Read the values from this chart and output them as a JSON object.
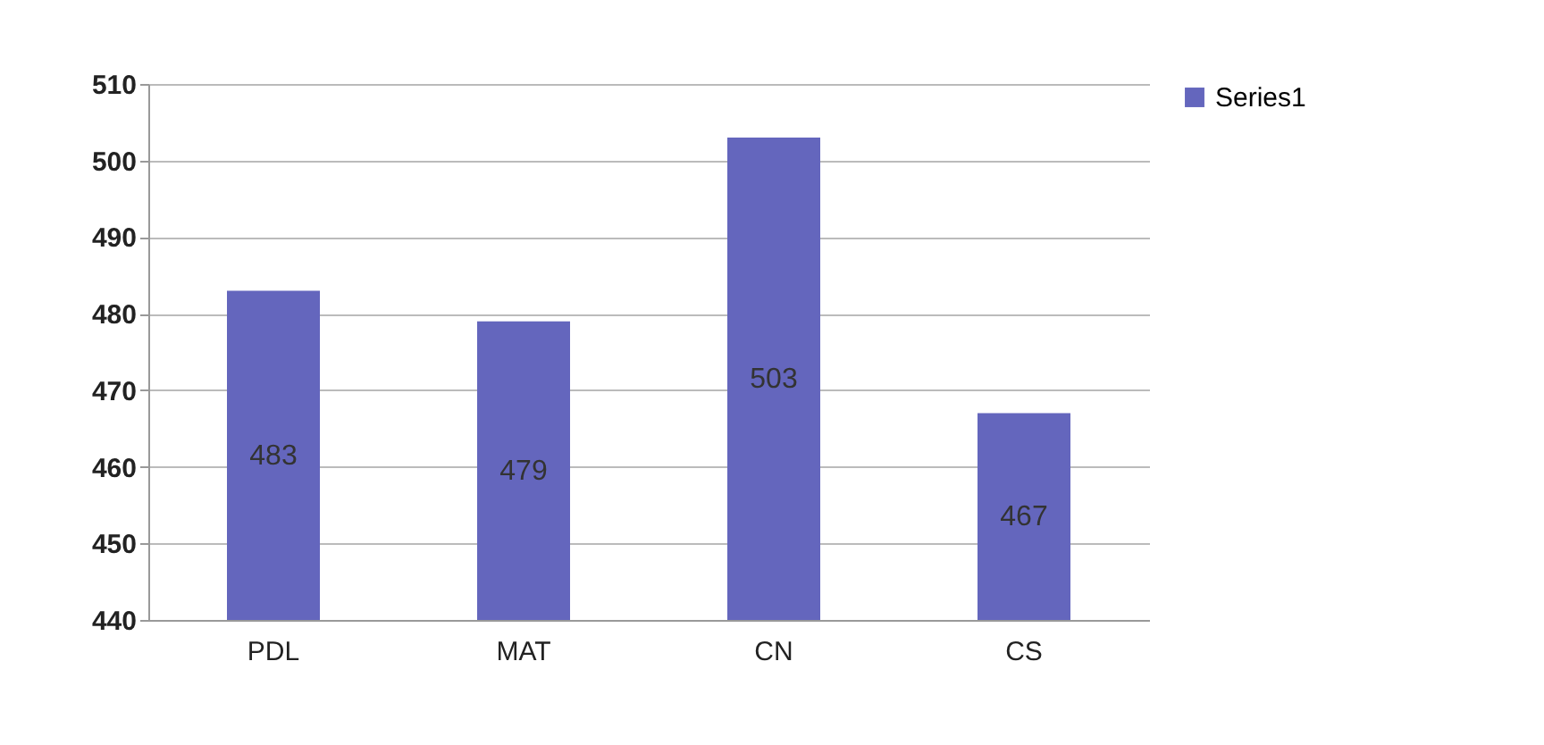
{
  "chart_data": {
    "type": "bar",
    "categories": [
      "PDL",
      "MAT",
      "CN",
      "CS"
    ],
    "series": [
      {
        "name": "Series1",
        "color": "#6466bd",
        "values": [
          483,
          479,
          503,
          467
        ]
      }
    ],
    "ylim": [
      440,
      510
    ],
    "yticks": [
      440,
      450,
      460,
      470,
      480,
      490,
      500,
      510
    ],
    "grid": "y",
    "legend": "right",
    "data_labels": true
  }
}
